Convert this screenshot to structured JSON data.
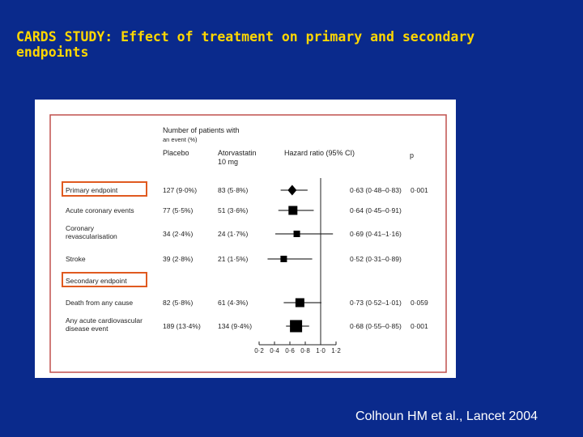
{
  "slide": {
    "title_line1": "CARDS STUDY: Effect of treatment on primary and secondary",
    "title_line2": "endpoints",
    "citation": "Colhoun HM et al., Lancet 2004"
  },
  "colors": {
    "background": "#0a2a8c",
    "title": "#ffd700",
    "frame": "#c0504d",
    "highlight_box": "#e05a20",
    "marker": "#000000"
  },
  "chart_data": {
    "type": "forest",
    "headers": {
      "n_events_line1": "Number of patients with",
      "n_events_line2": "an event (%)",
      "placebo": "Placebo",
      "atorva_line1": "Atorvastatin",
      "atorva_line2": "10 mg",
      "hr": "Hazard ratio (95% CI)",
      "p": "p"
    },
    "rows": [
      {
        "label": [
          "Primary endpoint"
        ],
        "placebo": "127 (9·0%)",
        "atorvastatin": "83 (5·8%)",
        "hr": 0.63,
        "lo": 0.48,
        "hi": 0.83,
        "hr_text": "0·63 (0·48–0·83)",
        "p": "0·001",
        "marker": "diamond",
        "size": 11,
        "highlight": true
      },
      {
        "label": [
          "Acute coronary events"
        ],
        "placebo": "77 (5·5%)",
        "atorvastatin": "51 (3·6%)",
        "hr": 0.64,
        "lo": 0.45,
        "hi": 0.91,
        "hr_text": "0·64 (0·45–0·91)",
        "p": "",
        "marker": "square",
        "size": 11
      },
      {
        "label": [
          "Coronary",
          "revascularisation"
        ],
        "placebo": "34 (2·4%)",
        "atorvastatin": "24 (1·7%)",
        "hr": 0.69,
        "lo": 0.41,
        "hi": 1.16,
        "hr_text": "0·69 (0·41–1·16)",
        "p": "",
        "marker": "square",
        "size": 8
      },
      {
        "label": [
          "Stroke"
        ],
        "placebo": "39 (2·8%)",
        "atorvastatin": "21 (1·5%)",
        "hr": 0.52,
        "lo": 0.31,
        "hi": 0.89,
        "hr_text": "0·52 (0·31–0·89)",
        "p": "",
        "marker": "square",
        "size": 8
      },
      {
        "label": [
          "Secondary endpoint"
        ],
        "heading": true,
        "highlight": true
      },
      {
        "label": [
          "Death from any cause"
        ],
        "placebo": "82 (5·8%)",
        "atorvastatin": "61 (4·3%)",
        "hr": 0.73,
        "lo": 0.52,
        "hi": 1.01,
        "hr_text": "0·73 (0·52–1·01)",
        "p": "0·059",
        "marker": "square",
        "size": 11
      },
      {
        "label": [
          "Any acute cardiovascular",
          "disease event"
        ],
        "placebo": "189 (13·4%)",
        "atorvastatin": "134 (9·4%)",
        "hr": 0.68,
        "lo": 0.55,
        "hi": 0.85,
        "hr_text": "0·68 (0·55–0·85)",
        "p": "0·001",
        "marker": "square",
        "size": 15
      }
    ],
    "x_axis": {
      "ticks": [
        0.2,
        0.4,
        0.6,
        0.8,
        1.0,
        1.2
      ],
      "tick_labels": [
        "0·2",
        "0·4",
        "0·6",
        "0·8",
        "1·0",
        "1·2"
      ],
      "range": [
        0.2,
        1.2
      ],
      "reference": 1.0
    }
  }
}
